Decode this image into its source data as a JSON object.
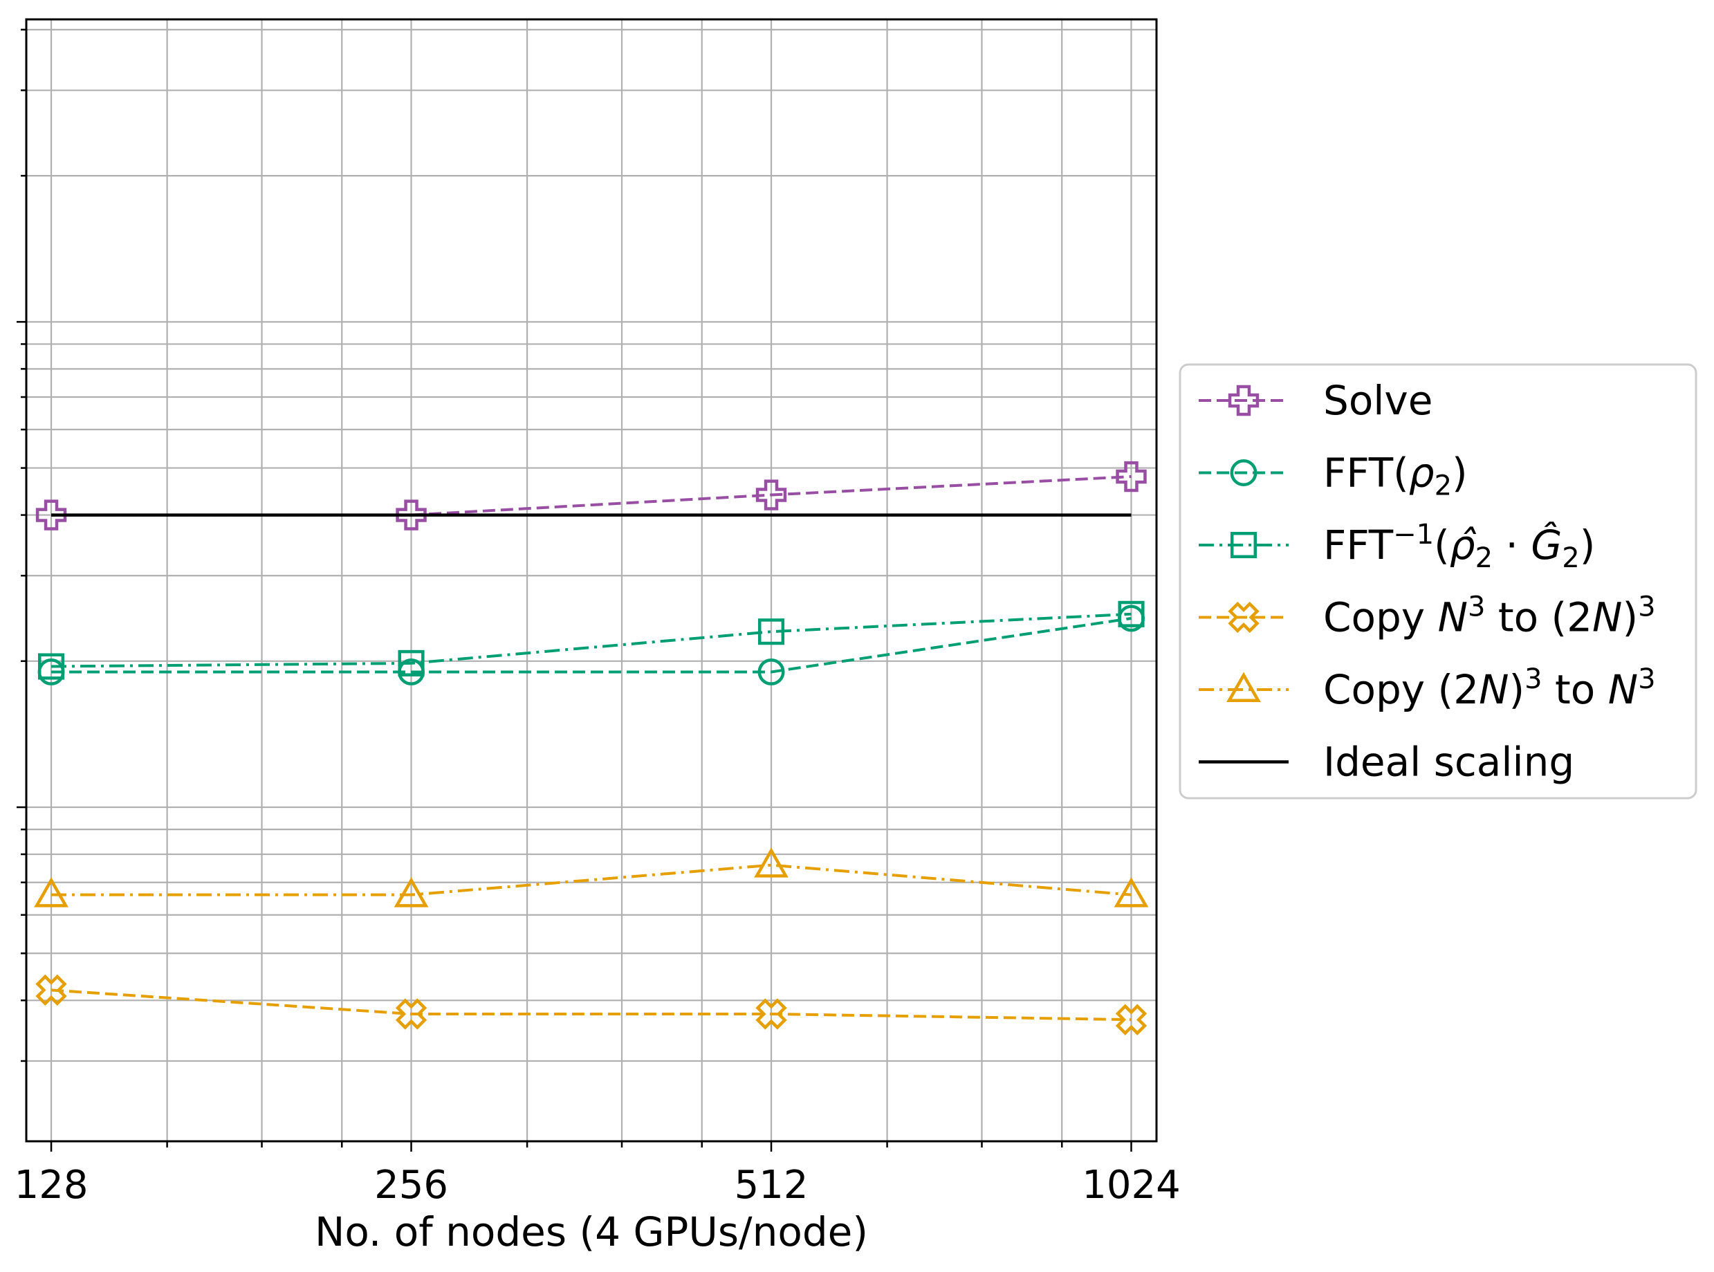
{
  "chart_data": {
    "type": "line",
    "title": "",
    "xlabel": "No. of nodes (4 GPUs/node)",
    "ylabel": "",
    "x_scale": "log2",
    "y_scale": "log",
    "x": [
      128,
      256,
      512,
      1024
    ],
    "x_tick_labels": [
      "128",
      "256",
      "512",
      "1024"
    ],
    "xlim": [
      122,
      1075
    ],
    "ylim": [
      0.0205,
      4.2
    ],
    "y_tick_labels_visible": false,
    "grid": true,
    "legend_position": "outside-right",
    "series": [
      {
        "name": "Solve",
        "color": "#984ea3",
        "linestyle": "dashed",
        "marker": "plus",
        "values": [
          0.4,
          0.4,
          0.44,
          0.48
        ]
      },
      {
        "name": "FFT(ρ2)",
        "color": "#009e73",
        "linestyle": "dashed",
        "marker": "circle",
        "values": [
          0.19,
          0.19,
          0.19,
          0.245
        ]
      },
      {
        "name": "FFT−1(ρ̂2 · Ĝ2)",
        "color": "#009e73",
        "linestyle": "dashdot",
        "marker": "square",
        "values": [
          0.195,
          0.198,
          0.23,
          0.25
        ]
      },
      {
        "name": "Copy N3 to (2N)3",
        "color": "#e69f00",
        "linestyle": "dashed",
        "marker": "x-filled",
        "values": [
          0.042,
          0.0375,
          0.0375,
          0.0365
        ]
      },
      {
        "name": "Copy (2N)3 to N3",
        "color": "#e69f00",
        "linestyle": "dashdot",
        "marker": "triangle",
        "values": [
          0.066,
          0.066,
          0.076,
          0.066
        ]
      },
      {
        "name": "Ideal scaling",
        "color": "#000000",
        "linestyle": "solid",
        "marker": "none",
        "values": [
          0.4,
          0.4,
          0.4,
          0.4
        ]
      }
    ]
  },
  "legend": {
    "entries": [
      {
        "parts": [
          {
            "t": "Solve"
          }
        ]
      },
      {
        "parts": [
          {
            "t": "FFT("
          },
          {
            "t": "ρ",
            "i": true
          },
          {
            "t": "2",
            "sub": true
          },
          {
            "t": ")"
          }
        ]
      },
      {
        "parts": [
          {
            "t": "FFT"
          },
          {
            "t": "−1",
            "sup": true
          },
          {
            "t": "("
          },
          {
            "t": "ρ̂",
            "i": true
          },
          {
            "t": "2",
            "sub": true
          },
          {
            "t": " · "
          },
          {
            "t": "Ĝ",
            "i": true
          },
          {
            "t": "2",
            "sub": true
          },
          {
            "t": ")"
          }
        ]
      },
      {
        "parts": [
          {
            "t": "Copy "
          },
          {
            "t": "N",
            "i": true
          },
          {
            "t": "3",
            "sup": true
          },
          {
            "t": " to (2"
          },
          {
            "t": "N",
            "i": true
          },
          {
            "t": ")"
          },
          {
            "t": "3",
            "sup": true
          }
        ]
      },
      {
        "parts": [
          {
            "t": "Copy (2"
          },
          {
            "t": "N",
            "i": true
          },
          {
            "t": ")"
          },
          {
            "t": "3",
            "sup": true
          },
          {
            "t": " to "
          },
          {
            "t": "N",
            "i": true
          },
          {
            "t": "3",
            "sup": true
          }
        ]
      },
      {
        "parts": [
          {
            "t": "Ideal scaling"
          }
        ]
      }
    ]
  }
}
